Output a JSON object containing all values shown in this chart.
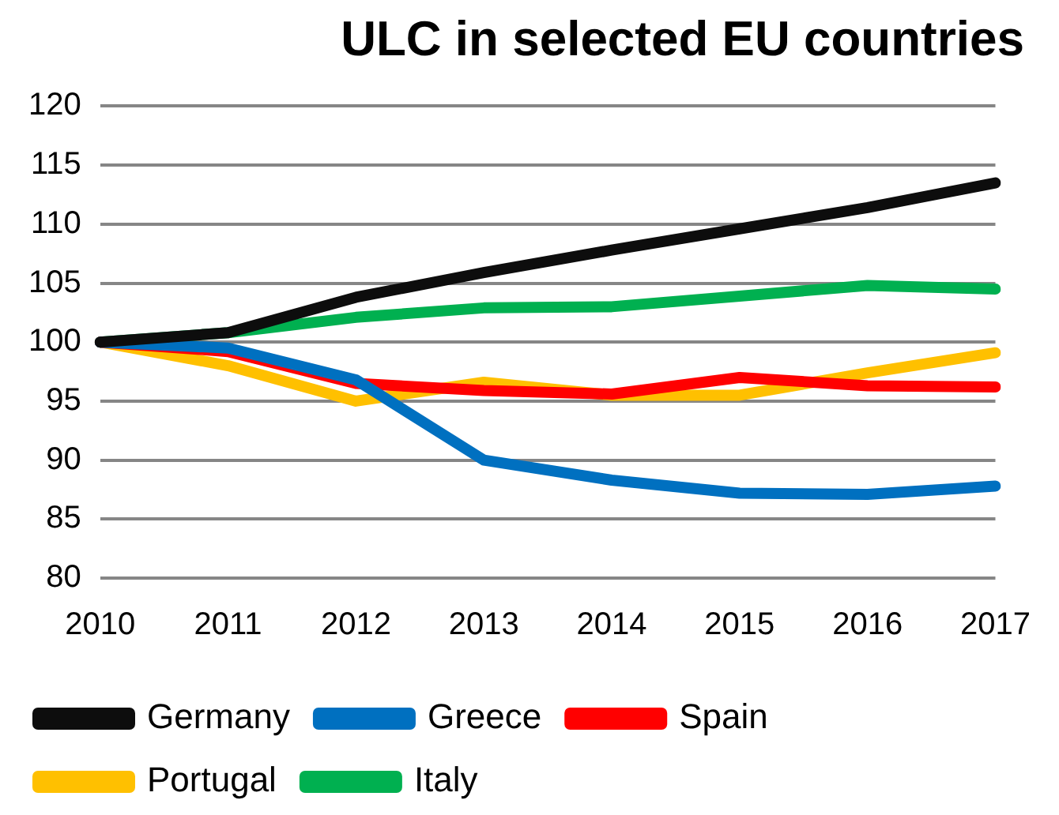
{
  "chart_data": {
    "type": "line",
    "title": "ULC in selected EU countries",
    "categories": [
      "2010",
      "2011",
      "2012",
      "2013",
      "2014",
      "2015",
      "2016",
      "2017"
    ],
    "series": [
      {
        "name": "Germany",
        "color": "#0d0d0d",
        "values": [
          100,
          100.8,
          103.8,
          105.9,
          107.8,
          109.6,
          111.4,
          113.5
        ]
      },
      {
        "name": "Greece",
        "color": "#0070c0",
        "values": [
          100,
          99.5,
          96.8,
          90,
          88.3,
          87.2,
          87.1,
          87.8
        ]
      },
      {
        "name": "Spain",
        "color": "#ff0000",
        "values": [
          100,
          99.2,
          96.5,
          95.9,
          95.6,
          97.0,
          96.3,
          96.2
        ]
      },
      {
        "name": "Portugal",
        "color": "#ffc000",
        "values": [
          100,
          98,
          95,
          96.6,
          95.5,
          95.5,
          97.4,
          99.1
        ]
      },
      {
        "name": "Italy",
        "color": "#00b050",
        "values": [
          100,
          100.8,
          102.1,
          102.9,
          103.0,
          103.9,
          104.8,
          104.5
        ]
      }
    ],
    "ylim": [
      80,
      120
    ],
    "yticks": [
      80,
      85,
      90,
      95,
      100,
      105,
      110,
      115,
      120
    ],
    "grid": "y",
    "legend": "bottom",
    "marker": "none",
    "line_style": "solid"
  }
}
